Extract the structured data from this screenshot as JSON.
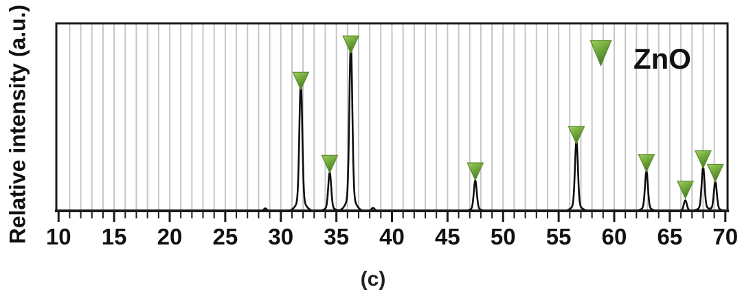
{
  "figure": {
    "caption": "(c)",
    "background_color": "#ffffff"
  },
  "chart_data": {
    "type": "line",
    "description": "XRD diffraction pattern with ZnO peaks marked by green inverted triangles",
    "title": "",
    "xlabel": "",
    "ylabel": "Relative intensity (a.u.)",
    "x_axis": {
      "range": [
        9.8,
        70.2
      ],
      "major_ticks": [
        10,
        15,
        20,
        25,
        30,
        35,
        40,
        45,
        50,
        55,
        60,
        65,
        70
      ],
      "major_tick_labels": [
        "10",
        "15",
        "20",
        "25",
        "30",
        "35",
        "40",
        "45",
        "50",
        "55",
        "60",
        "65",
        "70"
      ],
      "minor_tick_step": 1,
      "gridline_step": 1,
      "grid_on": true
    },
    "y_axis": {
      "range": [
        0,
        1
      ],
      "ticks": "none",
      "units": "a.u."
    },
    "series": [
      {
        "name": "ZnO",
        "peaks": [
          {
            "two_theta": 28.6,
            "rel_intensity": 0.012,
            "marked": false
          },
          {
            "two_theta": 31.8,
            "rel_intensity": 0.635,
            "marked": true
          },
          {
            "two_theta": 34.4,
            "rel_intensity": 0.19,
            "marked": true
          },
          {
            "two_theta": 36.3,
            "rel_intensity": 0.83,
            "marked": true
          },
          {
            "two_theta": 38.3,
            "rel_intensity": 0.015,
            "marked": false
          },
          {
            "two_theta": 47.5,
            "rel_intensity": 0.15,
            "marked": true
          },
          {
            "two_theta": 56.6,
            "rel_intensity": 0.345,
            "marked": true
          },
          {
            "two_theta": 62.9,
            "rel_intensity": 0.195,
            "marked": true
          },
          {
            "two_theta": 66.4,
            "rel_intensity": 0.052,
            "marked": true
          },
          {
            "two_theta": 68.0,
            "rel_intensity": 0.215,
            "marked": true
          },
          {
            "two_theta": 69.1,
            "rel_intensity": 0.142,
            "marked": true
          }
        ]
      }
    ],
    "legend": {
      "label": "ZnO",
      "marker": "triangle-down-green",
      "position": "inside-top-right"
    },
    "colors": {
      "curve": "#0e0e0e",
      "plot_border": "#1a1a1a",
      "gridline": "#c6c6c6",
      "tick_label": "#111111",
      "marker_fill_light": "#a3cf62",
      "marker_fill_mid": "#74ad3d",
      "marker_fill_dark": "#487722",
      "marker_stroke": "#5d8c31"
    }
  }
}
